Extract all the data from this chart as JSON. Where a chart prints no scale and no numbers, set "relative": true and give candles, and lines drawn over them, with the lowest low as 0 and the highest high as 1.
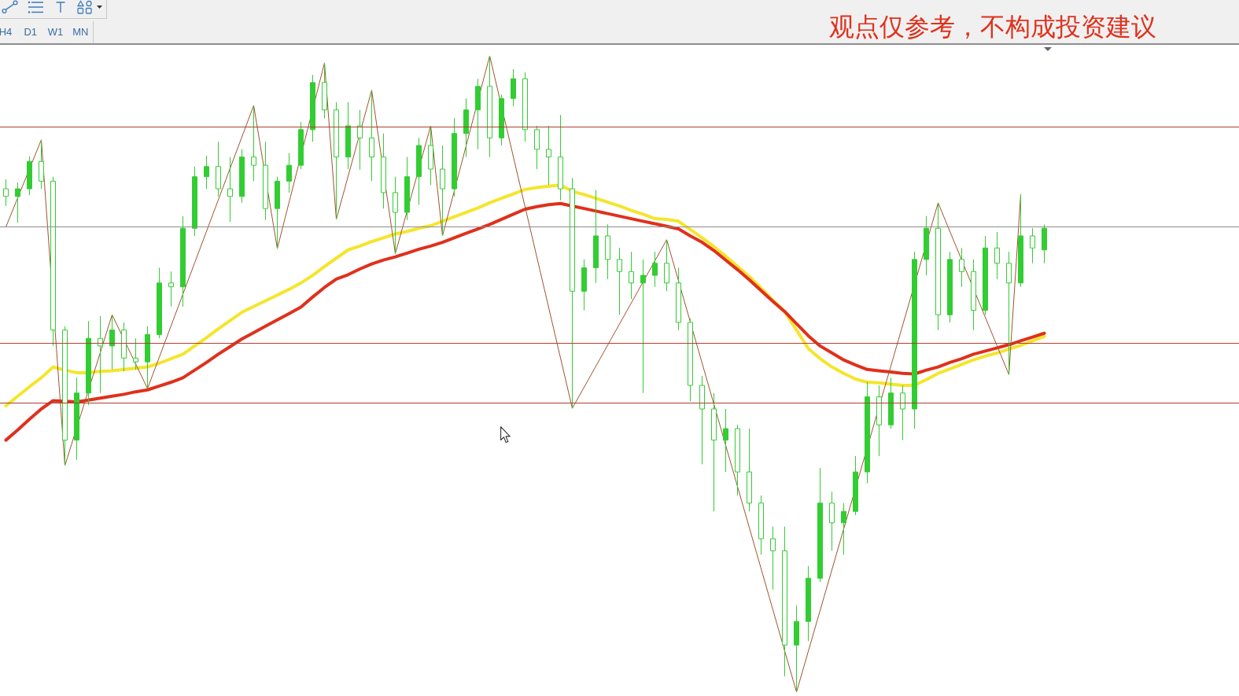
{
  "chart_data": {
    "type": "candlestick",
    "relative": true,
    "tick_labels": false,
    "color": "#32cd32",
    "categories": [
      null,
      null,
      null,
      null,
      null,
      null,
      null,
      null,
      null,
      null,
      null,
      null,
      null,
      null,
      null,
      null,
      null,
      null,
      null,
      null,
      null,
      null,
      null,
      null,
      null,
      null,
      null,
      null,
      null,
      null,
      null,
      null,
      null,
      null,
      null,
      null,
      null,
      null,
      null,
      null,
      null,
      null,
      null,
      null,
      null,
      null,
      null,
      null,
      null,
      null,
      null,
      null,
      null,
      null,
      null,
      null,
      null,
      null,
      null,
      null,
      null,
      null,
      null,
      null,
      null,
      null,
      null,
      null,
      null,
      null,
      null,
      null,
      null,
      null,
      null,
      null,
      null,
      null,
      null,
      null,
      null,
      null,
      null,
      null,
      null,
      null,
      null,
      null,
      null,
      null,
      null,
      null,
      null,
      null,
      null,
      null,
      null,
      null,
      null,
      null,
      null,
      null,
      null,
      null,
      null
    ],
    "ohlc": [
      [
        0.791,
        0.806,
        0.764,
        0.779
      ],
      [
        0.779,
        0.801,
        0.738,
        0.791
      ],
      [
        0.791,
        0.842,
        0.781,
        0.834
      ],
      [
        0.834,
        0.868,
        0.791,
        0.803
      ],
      [
        0.803,
        0.81,
        0.544,
        0.569
      ],
      [
        0.569,
        0.575,
        0.356,
        0.396
      ],
      [
        0.396,
        0.494,
        0.365,
        0.47
      ],
      [
        0.47,
        0.583,
        0.451,
        0.556
      ],
      [
        0.556,
        0.591,
        0.47,
        0.544
      ],
      [
        0.544,
        0.593,
        0.507,
        0.569
      ],
      [
        0.569,
        0.581,
        0.504,
        0.525
      ],
      [
        0.525,
        0.556,
        0.507,
        0.519
      ],
      [
        0.519,
        0.575,
        0.477,
        0.562
      ],
      [
        0.562,
        0.667,
        0.556,
        0.643
      ],
      [
        0.643,
        0.661,
        0.606,
        0.637
      ],
      [
        0.637,
        0.748,
        0.606,
        0.729
      ],
      [
        0.729,
        0.826,
        0.717,
        0.81
      ],
      [
        0.81,
        0.843,
        0.791,
        0.826
      ],
      [
        0.826,
        0.865,
        0.779,
        0.791
      ],
      [
        0.791,
        0.841,
        0.739,
        0.779
      ],
      [
        0.779,
        0.853,
        0.769,
        0.841
      ],
      [
        0.841,
        0.922,
        0.803,
        0.828
      ],
      [
        0.828,
        0.865,
        0.742,
        0.76
      ],
      [
        0.76,
        0.81,
        0.697,
        0.803
      ],
      [
        0.803,
        0.847,
        0.785,
        0.828
      ],
      [
        0.828,
        0.896,
        0.822,
        0.884
      ],
      [
        0.884,
        0.97,
        0.865,
        0.958
      ],
      [
        0.958,
        0.989,
        0.902,
        0.915
      ],
      [
        0.915,
        0.927,
        0.743,
        0.841
      ],
      [
        0.841,
        0.927,
        0.822,
        0.89
      ],
      [
        0.89,
        0.915,
        0.821,
        0.871
      ],
      [
        0.871,
        0.946,
        0.803,
        0.841
      ],
      [
        0.841,
        0.878,
        0.76,
        0.785
      ],
      [
        0.785,
        0.81,
        0.689,
        0.754
      ],
      [
        0.754,
        0.841,
        0.742,
        0.81
      ],
      [
        0.81,
        0.871,
        0.766,
        0.859
      ],
      [
        0.859,
        0.89,
        0.797,
        0.822
      ],
      [
        0.822,
        0.859,
        0.717,
        0.791
      ],
      [
        0.791,
        0.902,
        0.779,
        0.878
      ],
      [
        0.878,
        0.933,
        0.841,
        0.915
      ],
      [
        0.915,
        0.964,
        0.853,
        0.952
      ],
      [
        0.952,
        1,
        0.841,
        0.871
      ],
      [
        0.871,
        0.939,
        0.859,
        0.933
      ],
      [
        0.933,
        0.979,
        0.921,
        0.964
      ],
      [
        0.964,
        0.974,
        0.865,
        0.884
      ],
      [
        0.884,
        0.89,
        0.822,
        0.853
      ],
      [
        0.853,
        0.89,
        0.797,
        0.841
      ],
      [
        0.841,
        0.907,
        0.773,
        0.791
      ],
      [
        0.791,
        0.808,
        0.446,
        0.63
      ],
      [
        0.63,
        0.68,
        0.6,
        0.667
      ],
      [
        0.667,
        0.789,
        0.643,
        0.717
      ],
      [
        0.717,
        0.735,
        0.649,
        0.68
      ],
      [
        0.68,
        0.698,
        0.593,
        0.661
      ],
      [
        0.661,
        0.692,
        0.618,
        0.643
      ],
      [
        0.643,
        0.68,
        0.47,
        0.655
      ],
      [
        0.655,
        0.692,
        0.637,
        0.674
      ],
      [
        0.674,
        0.711,
        0.63,
        0.643
      ],
      [
        0.643,
        0.667,
        0.569,
        0.581
      ],
      [
        0.581,
        0.587,
        0.457,
        0.482
      ],
      [
        0.482,
        0.497,
        0.358,
        0.445
      ],
      [
        0.445,
        0.47,
        0.284,
        0.396
      ],
      [
        0.396,
        0.445,
        0.346,
        0.414
      ],
      [
        0.414,
        0.42,
        0.309,
        0.346
      ],
      [
        0.346,
        0.414,
        0.284,
        0.297
      ],
      [
        0.297,
        0.309,
        0.216,
        0.241
      ],
      [
        0.241,
        0.26,
        0.161,
        0.222
      ],
      [
        0.222,
        0.26,
        0.025,
        0.074
      ],
      [
        0.074,
        0.136,
        0,
        0.111
      ],
      [
        0.111,
        0.198,
        0.08,
        0.179
      ],
      [
        0.179,
        0.352,
        0.173,
        0.297
      ],
      [
        0.297,
        0.315,
        0.222,
        0.266
      ],
      [
        0.266,
        0.297,
        0.216,
        0.284
      ],
      [
        0.284,
        0.371,
        0.278,
        0.346
      ],
      [
        0.346,
        0.488,
        0.328,
        0.464
      ],
      [
        0.464,
        0.482,
        0.371,
        0.42
      ],
      [
        0.42,
        0.494,
        0.414,
        0.47
      ],
      [
        0.47,
        0.482,
        0.396,
        0.445
      ],
      [
        0.445,
        0.692,
        0.414,
        0.68
      ],
      [
        0.68,
        0.748,
        0.655,
        0.729
      ],
      [
        0.729,
        0.769,
        0.569,
        0.593
      ],
      [
        0.593,
        0.692,
        0.581,
        0.68
      ],
      [
        0.68,
        0.698,
        0.637,
        0.661
      ],
      [
        0.661,
        0.68,
        0.569,
        0.6
      ],
      [
        0.6,
        0.717,
        0.593,
        0.698
      ],
      [
        0.698,
        0.723,
        0.649,
        0.674
      ],
      [
        0.674,
        0.692,
        0.499,
        0.643
      ],
      [
        0.643,
        0.782,
        0.637,
        0.717
      ],
      [
        0.717,
        0.729,
        0.674,
        0.698
      ],
      [
        0.695,
        0.735,
        0.674,
        0.729
      ],
      null,
      null,
      null,
      null,
      null,
      null,
      null,
      null,
      null,
      null,
      null,
      null,
      null,
      null,
      null,
      null
    ],
    "series": [
      {
        "type": "line",
        "color": "#f5e52c",
        "values": [
          0.45,
          0.465,
          0.48,
          0.494,
          0.511,
          0.506,
          0.502,
          0.502,
          0.504,
          0.505,
          0.507,
          0.509,
          0.511,
          0.517,
          0.524,
          0.531,
          0.544,
          0.557,
          0.571,
          0.584,
          0.597,
          0.606,
          0.615,
          0.624,
          0.633,
          0.643,
          0.655,
          0.669,
          0.682,
          0.695,
          0.701,
          0.708,
          0.714,
          0.72,
          0.724,
          0.729,
          0.733,
          0.74,
          0.747,
          0.754,
          0.761,
          0.769,
          0.776,
          0.783,
          0.79,
          0.793,
          0.795,
          0.797,
          0.787,
          0.782,
          0.776,
          0.77,
          0.764,
          0.757,
          0.751,
          0.744,
          0.743,
          0.74,
          0.727,
          0.714,
          0.7,
          0.685,
          0.669,
          0.653,
          0.635,
          0.616,
          0.598,
          0.569,
          0.54,
          0.524,
          0.511,
          0.501,
          0.492,
          0.487,
          0.486,
          0.484,
          0.482,
          0.482,
          0.491,
          0.501,
          0.508,
          0.515,
          0.522,
          0.528,
          0.533,
          0.539,
          0.545,
          0.552,
          0.559,
          null,
          null,
          null,
          null,
          null,
          null,
          null,
          null,
          null,
          null,
          null,
          null,
          null,
          null,
          null,
          null
        ]
      },
      {
        "type": "line",
        "color": "#e0301c",
        "values": [
          0.396,
          0.412,
          0.429,
          0.445,
          0.458,
          0.457,
          0.456,
          0.459,
          0.462,
          0.465,
          0.468,
          0.472,
          0.475,
          0.481,
          0.487,
          0.494,
          0.506,
          0.518,
          0.531,
          0.543,
          0.555,
          0.565,
          0.575,
          0.585,
          0.595,
          0.605,
          0.621,
          0.636,
          0.649,
          0.656,
          0.665,
          0.673,
          0.679,
          0.684,
          0.69,
          0.696,
          0.701,
          0.707,
          0.714,
          0.721,
          0.728,
          0.735,
          0.743,
          0.751,
          0.759,
          0.763,
          0.766,
          0.768,
          0.764,
          0.76,
          0.756,
          0.752,
          0.748,
          0.744,
          0.74,
          0.736,
          0.732,
          0.728,
          0.717,
          0.707,
          0.694,
          0.679,
          0.664,
          0.648,
          0.631,
          0.614,
          0.598,
          0.579,
          0.56,
          0.544,
          0.533,
          0.522,
          0.514,
          0.507,
          0.505,
          0.503,
          0.501,
          0.5,
          0.506,
          0.511,
          0.518,
          0.524,
          0.531,
          0.536,
          0.541,
          0.546,
          0.552,
          0.558,
          0.564,
          null,
          null,
          null,
          null,
          null,
          null,
          null,
          null,
          null,
          null,
          null,
          null,
          null,
          null,
          null,
          null
        ]
      },
      {
        "type": "line",
        "color": "#a0522d",
        "values": [
          0.731,
          null,
          null,
          0.868,
          null,
          0.356,
          null,
          null,
          null,
          0.593,
          null,
          null,
          0.477,
          null,
          null,
          null,
          null,
          null,
          null,
          null,
          null,
          0.922,
          null,
          0.697,
          null,
          null,
          null,
          0.989,
          0.743,
          null,
          null,
          0.946,
          null,
          0.689,
          null,
          null,
          0.89,
          0.717,
          null,
          null,
          null,
          1,
          null,
          null,
          null,
          null,
          null,
          null,
          0.446,
          null,
          null,
          null,
          null,
          null,
          null,
          null,
          0.711,
          null,
          null,
          null,
          null,
          null,
          null,
          null,
          null,
          null,
          null,
          0,
          null,
          null,
          null,
          null,
          null,
          null,
          null,
          null,
          null,
          null,
          null,
          0.769,
          null,
          null,
          null,
          null,
          null,
          0.499,
          0.782,
          null,
          null,
          null,
          null,
          null,
          null,
          null,
          null,
          null,
          null,
          null,
          null,
          null,
          null,
          null,
          null,
          null,
          null
        ]
      }
    ],
    "ref_lines": [
      {
        "axis": "y",
        "value": 0.889,
        "color": "#a8402e"
      },
      {
        "axis": "y",
        "value": 0.731,
        "color": "#8c8c8c"
      },
      {
        "axis": "y",
        "value": 0.549,
        "color": "#a8402e"
      },
      {
        "axis": "y",
        "value": 0.455,
        "color": "#a8402e"
      }
    ],
    "annotations": [
      "H4",
      "D1",
      "W1",
      "MN",
      "观点仅参考，不构成投资建议"
    ]
  }
}
